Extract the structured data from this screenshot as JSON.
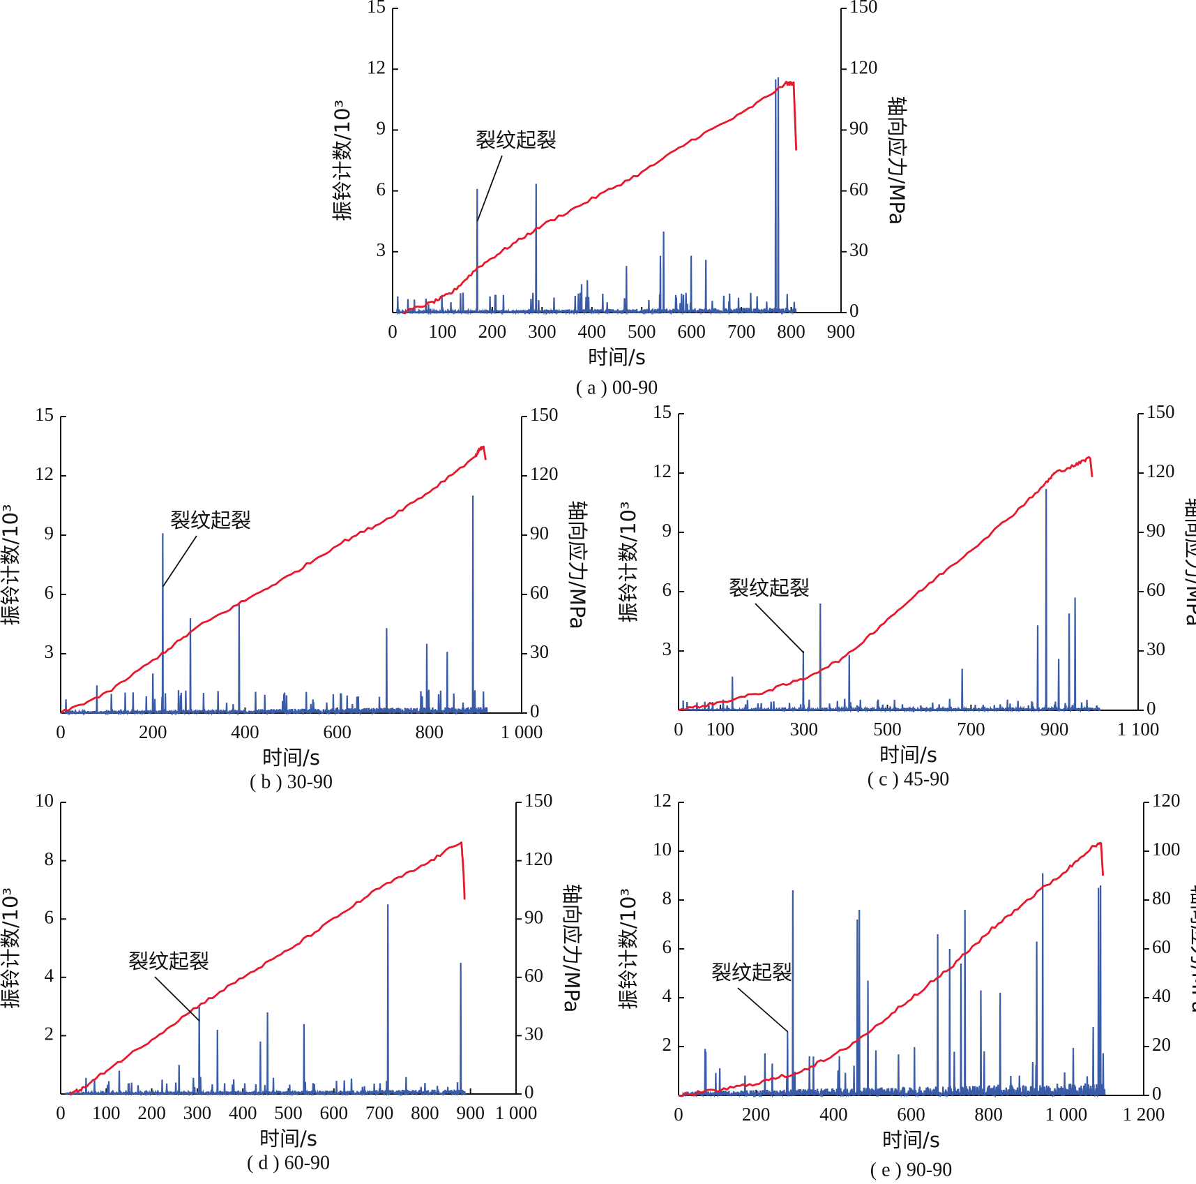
{
  "colors": {
    "ring": "#3a5ca8",
    "stress": "#e8192c",
    "axis": "#111111"
  },
  "chart_data": [
    {
      "type": "line",
      "caption": "( a ) 00-90",
      "xlabel": "时间/s",
      "ylabel": "振铃计数/10³",
      "y2label": "轴向应力/MPa",
      "xlim": [
        0,
        900
      ],
      "xticks": [
        "0",
        "100",
        "200",
        "300",
        "400",
        "500",
        "600",
        "700",
        "800",
        "900"
      ],
      "xtick_values": [
        0,
        100,
        200,
        300,
        400,
        500,
        600,
        700,
        800,
        900
      ],
      "ylim": [
        0,
        15
      ],
      "yticks": [
        0,
        3,
        6,
        9,
        12,
        15
      ],
      "yticks_left": [
        "",
        "3",
        "6",
        "9",
        "12",
        "15"
      ],
      "y2lim": [
        0,
        150
      ],
      "y2ticks": [
        0,
        30,
        60,
        90,
        120,
        150
      ],
      "yticks_right": [
        "0",
        "30",
        "60",
        "90",
        "120",
        "150"
      ],
      "annotation": {
        "text": "裂纹起裂",
        "x": 170,
        "y": 4.5
      },
      "t_end": 810,
      "series": [
        {
          "name": "振铃计数",
          "axis": "left",
          "noise": 0.25,
          "spikes": [
            [
              170,
              6.1
            ],
            [
              288,
              6.35
            ],
            [
              470,
              2.3
            ],
            [
              538,
              2.8
            ],
            [
              545,
              4.0
            ],
            [
              600,
              2.8
            ],
            [
              630,
              2.6
            ],
            [
              770,
              11.5
            ],
            [
              775,
              11.6
            ],
            [
              380,
              1.4
            ],
            [
              392,
              1.6
            ]
          ]
        },
        {
          "name": "轴向应力",
          "axis": "right",
          "points": [
            [
              20,
              0
            ],
            [
              80,
              5
            ],
            [
              120,
              10
            ],
            [
              170,
              22
            ],
            [
              230,
              32
            ],
            [
              300,
              43
            ],
            [
              400,
              56
            ],
            [
              500,
              69
            ],
            [
              600,
              85
            ],
            [
              700,
              98
            ],
            [
              790,
              113
            ],
            [
              800,
              113
            ],
            [
              805,
              113
            ],
            [
              810,
              80
            ]
          ]
        }
      ]
    },
    {
      "type": "line",
      "caption": "( b ) 30-90",
      "xlabel": "时间/s",
      "ylabel": "振铃计数/10³",
      "y2label": "轴向应力/MPa",
      "xlim": [
        0,
        1000
      ],
      "xticks": [
        "0",
        "200",
        "400",
        "600",
        "800",
        "1 000"
      ],
      "xtick_values": [
        0,
        200,
        400,
        600,
        800,
        1000
      ],
      "ylim": [
        0,
        15
      ],
      "yticks": [
        0,
        3,
        6,
        9,
        12,
        15
      ],
      "yticks_left": [
        "",
        "3",
        "6",
        "9",
        "12",
        "15"
      ],
      "y2lim": [
        0,
        150
      ],
      "y2ticks": [
        0,
        30,
        60,
        90,
        120,
        150
      ],
      "yticks_right": [
        "0",
        "30",
        "60",
        "90",
        "120",
        "150"
      ],
      "annotation": {
        "text": "裂纹起裂",
        "x": 222,
        "y": 6.4
      },
      "t_end": 925,
      "series": [
        {
          "name": "振铃计数",
          "axis": "left",
          "noise": 0.3,
          "spikes": [
            [
              222,
              9.1
            ],
            [
              282,
              4.8
            ],
            [
              388,
              5.5
            ],
            [
              708,
              4.3
            ],
            [
              795,
              3.5
            ],
            [
              840,
              3.1
            ],
            [
              895,
              11.0
            ],
            [
              80,
              1.4
            ],
            [
              200,
              2.0
            ]
          ]
        },
        {
          "name": "轴向应力",
          "axis": "right",
          "points": [
            [
              0,
              0
            ],
            [
              100,
              10
            ],
            [
              220,
              30
            ],
            [
              300,
              44
            ],
            [
              400,
              57
            ],
            [
              500,
              70
            ],
            [
              600,
              85
            ],
            [
              700,
              97
            ],
            [
              800,
              112
            ],
            [
              900,
              130
            ],
            [
              910,
              134
            ],
            [
              918,
              134
            ],
            [
              922,
              128
            ]
          ]
        }
      ]
    },
    {
      "type": "line",
      "caption": "( c ) 45-90",
      "xlabel": "时间/s",
      "ylabel": "振铃计数/10³",
      "y2label": "轴向应力/MPa",
      "xlim": [
        0,
        1100
      ],
      "xticks": [
        "0",
        "100",
        "300",
        "500",
        "700",
        "900",
        "1 100"
      ],
      "xtick_values": [
        0,
        100,
        300,
        500,
        700,
        900,
        1100
      ],
      "ylim": [
        0,
        15
      ],
      "yticks": [
        0,
        3,
        6,
        9,
        12,
        15
      ],
      "yticks_left": [
        "",
        "3",
        "6",
        "9",
        "12",
        "15"
      ],
      "y2lim": [
        0,
        150
      ],
      "y2ticks": [
        0,
        30,
        60,
        90,
        120,
        150
      ],
      "yticks_right": [
        "0",
        "30",
        "60",
        "90",
        "120",
        "150"
      ],
      "annotation": {
        "text": "裂纹起裂",
        "x": 300,
        "y": 2.9
      },
      "t_end": 1010,
      "series": [
        {
          "name": "振铃计数",
          "axis": "left",
          "noise": 0.15,
          "spikes": [
            [
              300,
              3.0
            ],
            [
              340,
              5.4
            ],
            [
              410,
              2.8
            ],
            [
              130,
              1.7
            ],
            [
              860,
              4.3
            ],
            [
              880,
              11.2
            ],
            [
              935,
              4.9
            ],
            [
              950,
              5.7
            ],
            [
              910,
              2.6
            ],
            [
              680,
              2.1
            ]
          ]
        },
        {
          "name": "轴向应力",
          "axis": "right",
          "points": [
            [
              0,
              0
            ],
            [
              100,
              4
            ],
            [
              200,
              9
            ],
            [
              300,
              16
            ],
            [
              400,
              27
            ],
            [
              500,
              46
            ],
            [
              600,
              64
            ],
            [
              700,
              81
            ],
            [
              800,
              99
            ],
            [
              880,
              115
            ],
            [
              900,
              120
            ],
            [
              950,
              124
            ],
            [
              985,
              128
            ],
            [
              990,
              118
            ]
          ]
        }
      ]
    },
    {
      "type": "line",
      "caption": "( d ) 60-90",
      "xlabel": "时间/s",
      "ylabel": "振铃计数/10³",
      "y2label": "轴向应力/MPa",
      "xlim": [
        0,
        1000
      ],
      "xticks": [
        "0",
        "100",
        "200",
        "300",
        "400",
        "500",
        "600",
        "700",
        "800",
        "900",
        "1 000"
      ],
      "xtick_values": [
        0,
        100,
        200,
        300,
        400,
        500,
        600,
        700,
        800,
        900,
        1000
      ],
      "ylim": [
        0,
        10
      ],
      "yticks": [
        0,
        2,
        4,
        6,
        8,
        10
      ],
      "yticks_left": [
        "",
        "2",
        "4",
        "6",
        "8",
        "10"
      ],
      "y2lim": [
        0,
        150
      ],
      "y2ticks": [
        0,
        30,
        60,
        90,
        120,
        150
      ],
      "yticks_right": [
        "0",
        "30",
        "60",
        "90",
        "120",
        "150"
      ],
      "annotation": {
        "text": "裂纹起裂",
        "x": 305,
        "y": 2.5
      },
      "t_end": 890,
      "series": [
        {
          "name": "振铃计数",
          "axis": "left",
          "noise": 0.15,
          "spikes": [
            [
              305,
              3.0
            ],
            [
              345,
              2.2
            ],
            [
              440,
              1.8
            ],
            [
              455,
              2.8
            ],
            [
              535,
              2.4
            ],
            [
              720,
              6.5
            ],
            [
              880,
              4.5
            ],
            [
              130,
              0.8
            ],
            [
              260,
              1.0
            ]
          ]
        },
        {
          "name": "轴向应力",
          "axis": "right",
          "points": [
            [
              20,
              0
            ],
            [
              50,
              3
            ],
            [
              100,
              12
            ],
            [
              200,
              28
            ],
            [
              300,
              45
            ],
            [
              400,
              60
            ],
            [
              500,
              74
            ],
            [
              600,
              90
            ],
            [
              700,
              106
            ],
            [
              800,
              118
            ],
            [
              880,
              130
            ],
            [
              885,
              112
            ],
            [
              887,
              100
            ]
          ]
        }
      ]
    },
    {
      "type": "line",
      "caption": "( e ) 90-90",
      "xlabel": "时间/s",
      "ylabel": "振铃计数/10³",
      "y2label": "轴向应力/MPa",
      "xlim": [
        0,
        1200
      ],
      "xticks": [
        "0",
        "200",
        "400",
        "600",
        "800",
        "1 000",
        "1 200"
      ],
      "xtick_values": [
        0,
        200,
        400,
        600,
        800,
        1000,
        1200
      ],
      "ylim": [
        0,
        12
      ],
      "yticks": [
        0,
        2,
        4,
        6,
        8,
        10,
        12
      ],
      "yticks_left": [
        "",
        "2",
        "4",
        "6",
        "8",
        "10",
        "12"
      ],
      "y2lim": [
        0,
        120
      ],
      "y2ticks": [
        0,
        20,
        40,
        60,
        80,
        100,
        120
      ],
      "yticks_right": [
        "0",
        "20",
        "40",
        "60",
        "80",
        "100",
        "120"
      ],
      "annotation": {
        "text": "裂纹起裂",
        "x": 282,
        "y": 2.6
      },
      "t_end": 1100,
      "series": [
        {
          "name": "振铃计数",
          "axis": "left",
          "noise": 0.5,
          "spikes": [
            [
              282,
              2.6
            ],
            [
              295,
              8.4
            ],
            [
              462,
              7.2
            ],
            [
              468,
              7.6
            ],
            [
              490,
              4.7
            ],
            [
              670,
              6.6
            ],
            [
              700,
              6.0
            ],
            [
              730,
              5.4
            ],
            [
              740,
              7.6
            ],
            [
              780,
              4.3
            ],
            [
              830,
              4.2
            ],
            [
              925,
              6.3
            ],
            [
              940,
              9.1
            ],
            [
              1085,
              8.5
            ],
            [
              1090,
              8.6
            ],
            [
              1070,
              2.8
            ]
          ]
        },
        {
          "name": "轴向应力",
          "axis": "right",
          "points": [
            [
              0,
              0
            ],
            [
              100,
              2
            ],
            [
              200,
              5
            ],
            [
              300,
              9
            ],
            [
              400,
              16
            ],
            [
              500,
              27
            ],
            [
              600,
              40
            ],
            [
              700,
              52
            ],
            [
              800,
              67
            ],
            [
              900,
              80
            ],
            [
              1000,
              92
            ],
            [
              1060,
              101
            ],
            [
              1090,
              103
            ],
            [
              1095,
              90
            ]
          ]
        }
      ]
    }
  ]
}
